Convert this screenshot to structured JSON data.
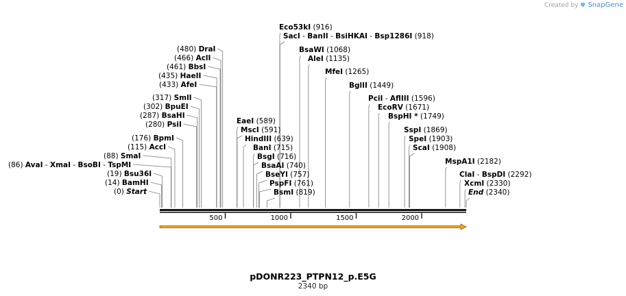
{
  "credit": {
    "prefix": "Created by",
    "brand": "SnapGene"
  },
  "map": {
    "name": "pDONR223_PTPN12_p.E5G",
    "length_text": "2340 bp",
    "length": 2340,
    "tick_values": [
      500,
      1000,
      1500,
      2000
    ],
    "orf_color": "#f5a623",
    "sites": [
      {
        "names": [
          "Start"
        ],
        "pos": 0,
        "pos_text": "(0)",
        "italic": true
      },
      {
        "names": [
          "BamHI"
        ],
        "pos": 14,
        "pos_text": "(14)"
      },
      {
        "names": [
          "Bsu36I"
        ],
        "pos": 19,
        "pos_text": "(19)"
      },
      {
        "names": [
          "AvaI",
          "XmaI",
          "BsoBI",
          "TspMI"
        ],
        "pos": 86,
        "pos_text": "(86)"
      },
      {
        "names": [
          "SmaI"
        ],
        "pos": 88,
        "pos_text": "(88)"
      },
      {
        "names": [
          "AccI"
        ],
        "pos": 115,
        "pos_text": "(115)"
      },
      {
        "names": [
          "BpmI"
        ],
        "pos": 176,
        "pos_text": "(176)"
      },
      {
        "names": [
          "PsiI"
        ],
        "pos": 280,
        "pos_text": "(280)"
      },
      {
        "names": [
          "BsaHI"
        ],
        "pos": 287,
        "pos_text": "(287)"
      },
      {
        "names": [
          "BpuEI"
        ],
        "pos": 302,
        "pos_text": "(302)"
      },
      {
        "names": [
          "SmlI"
        ],
        "pos": 317,
        "pos_text": "(317)"
      },
      {
        "names": [
          "AfeI"
        ],
        "pos": 433,
        "pos_text": "(433)"
      },
      {
        "names": [
          "HaeII"
        ],
        "pos": 435,
        "pos_text": "(435)"
      },
      {
        "names": [
          "BbsI"
        ],
        "pos": 461,
        "pos_text": "(461)"
      },
      {
        "names": [
          "AclI"
        ],
        "pos": 466,
        "pos_text": "(466)"
      },
      {
        "names": [
          "DraI"
        ],
        "pos": 480,
        "pos_text": "(480)"
      },
      {
        "names": [
          "EaeI"
        ],
        "pos": 589,
        "pos_text": "(589)"
      },
      {
        "names": [
          "MscI"
        ],
        "pos": 591,
        "pos_text": "(591)"
      },
      {
        "names": [
          "HindIII"
        ],
        "pos": 639,
        "pos_text": "(639)"
      },
      {
        "names": [
          "BanI"
        ],
        "pos": 715,
        "pos_text": "(715)"
      },
      {
        "names": [
          "BsgI"
        ],
        "pos": 716,
        "pos_text": "(716)"
      },
      {
        "names": [
          "BsaAI"
        ],
        "pos": 740,
        "pos_text": "(740)"
      },
      {
        "names": [
          "BseYI"
        ],
        "pos": 757,
        "pos_text": "(757)"
      },
      {
        "names": [
          "PspFI"
        ],
        "pos": 761,
        "pos_text": "(761)"
      },
      {
        "names": [
          "BsmI"
        ],
        "pos": 819,
        "pos_text": "(819)"
      },
      {
        "names": [
          "Eco53kI"
        ],
        "pos": 916,
        "pos_text": "(916)"
      },
      {
        "names": [
          "SacI",
          "BanII",
          "BsiHKAI",
          "Bsp1286I"
        ],
        "pos": 918,
        "pos_text": "(918)"
      },
      {
        "names": [
          "BsaWI"
        ],
        "pos": 1068,
        "pos_text": "(1068)"
      },
      {
        "names": [
          "AleI"
        ],
        "pos": 1135,
        "pos_text": "(1135)"
      },
      {
        "names": [
          "MfeI"
        ],
        "pos": 1265,
        "pos_text": "(1265)"
      },
      {
        "names": [
          "BglII"
        ],
        "pos": 1449,
        "pos_text": "(1449)"
      },
      {
        "names": [
          "PciI",
          "AflIII"
        ],
        "pos": 1596,
        "pos_text": "(1596)"
      },
      {
        "names": [
          "EcoRV"
        ],
        "pos": 1671,
        "pos_text": "(1671)"
      },
      {
        "names": [
          "BspHI *"
        ],
        "pos": 1749,
        "pos_text": "(1749)"
      },
      {
        "names": [
          "SspI"
        ],
        "pos": 1869,
        "pos_text": "(1869)"
      },
      {
        "names": [
          "SpeI"
        ],
        "pos": 1903,
        "pos_text": "(1903)"
      },
      {
        "names": [
          "ScaI"
        ],
        "pos": 1908,
        "pos_text": "(1908)"
      },
      {
        "names": [
          "MspA1I"
        ],
        "pos": 2182,
        "pos_text": "(2182)"
      },
      {
        "names": [
          "ClaI",
          "BspDI"
        ],
        "pos": 2292,
        "pos_text": "(2292)"
      },
      {
        "names": [
          "XcmI"
        ],
        "pos": 2330,
        "pos_text": "(2330)"
      },
      {
        "names": [
          "End"
        ],
        "pos": 2340,
        "pos_text": "(2340)",
        "italic": true
      }
    ]
  }
}
